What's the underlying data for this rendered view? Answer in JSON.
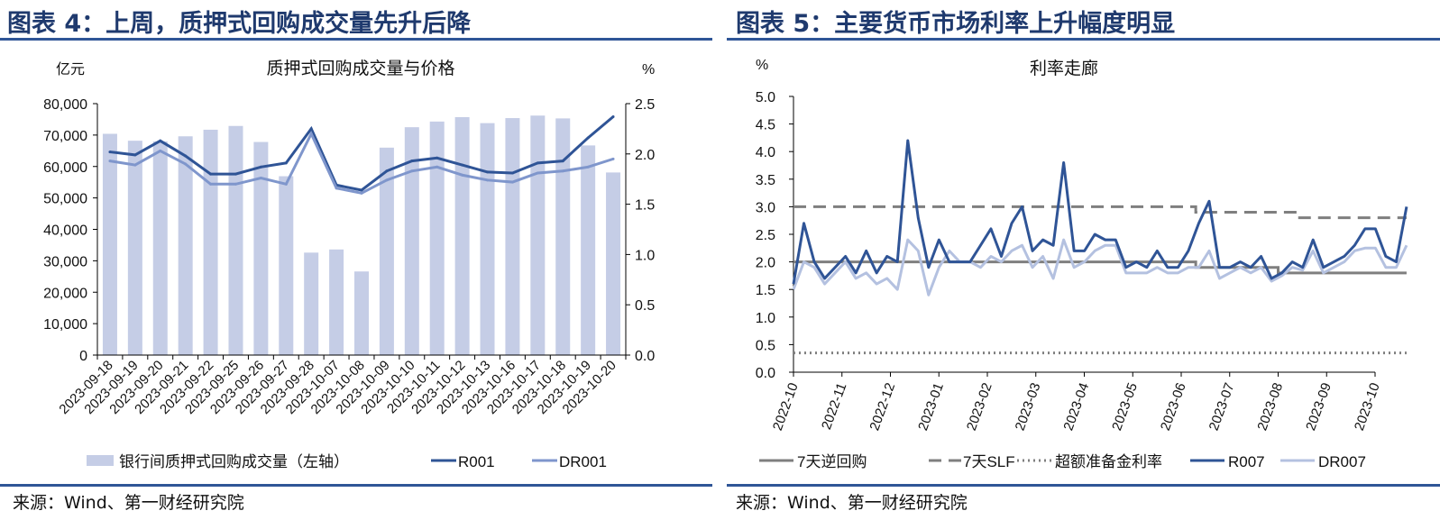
{
  "left_panel": {
    "header": "图表 4：上周，质押式回购成交量先升后降",
    "source": "来源：Wind、第一财经研究院"
  },
  "right_panel": {
    "header": "图表 5：主要货币市场利率上升幅度明显",
    "source": "来源：Wind、第一财经研究院"
  },
  "colors": {
    "header_rule": "#2f5597",
    "bar": "#c5cde6",
    "r001": "#2f5496",
    "dr001": "#7f96cc",
    "repo": "#7f7f7f",
    "r007": "#2f5496",
    "dr007": "#b4c1e0"
  },
  "chart_data": [
    {
      "type": "bar",
      "title": "质押式回购成交量与价格",
      "ylabel": "亿元",
      "y2label": "%",
      "ylim": [
        0,
        80000
      ],
      "y2lim": [
        0,
        2.5
      ],
      "yticks": [
        "0",
        "10,000",
        "20,000",
        "30,000",
        "40,000",
        "50,000",
        "60,000",
        "70,000",
        "80,000"
      ],
      "y2ticks": [
        "0.0",
        "0.5",
        "1.0",
        "1.5",
        "2.0",
        "2.5"
      ],
      "categories": [
        "2023-09-18",
        "2023-09-19",
        "2023-09-20",
        "2023-09-21",
        "2023-09-22",
        "2023-09-25",
        "2023-09-26",
        "2023-09-27",
        "2023-09-28",
        "2023-10-07",
        "2023-10-08",
        "2023-10-09",
        "2023-10-10",
        "2023-10-11",
        "2023-10-12",
        "2023-10-13",
        "2023-10-16",
        "2023-10-17",
        "2023-10-18",
        "2023-10-19",
        "2023-10-20"
      ],
      "series": [
        {
          "name": "银行间质押式回购成交量（左轴）",
          "type": "bar",
          "axis": "left",
          "values": [
            70400,
            68200,
            68000,
            69600,
            71700,
            72900,
            67800,
            56900,
            32600,
            33600,
            26600,
            66000,
            72500,
            74300,
            75700,
            73800,
            75400,
            76200,
            75300,
            66700,
            58100
          ]
        },
        {
          "name": "R001",
          "type": "line",
          "axis": "right",
          "values": [
            2.02,
            1.99,
            2.13,
            1.98,
            1.8,
            1.8,
            1.87,
            1.91,
            2.25,
            1.69,
            1.64,
            1.83,
            1.93,
            1.96,
            1.89,
            1.82,
            1.81,
            1.91,
            1.93,
            2.16,
            2.37
          ]
        },
        {
          "name": "DR001",
          "type": "line",
          "axis": "right",
          "values": [
            1.93,
            1.89,
            2.03,
            1.9,
            1.7,
            1.7,
            1.76,
            1.7,
            2.2,
            1.66,
            1.61,
            1.74,
            1.83,
            1.87,
            1.79,
            1.74,
            1.72,
            1.81,
            1.83,
            1.87,
            1.95
          ]
        }
      ],
      "legend": "bottom"
    },
    {
      "type": "line",
      "title": "利率走廊",
      "ylabel": "%",
      "ylim": [
        0,
        5
      ],
      "yticks": [
        "0.0",
        "0.5",
        "1.0",
        "1.5",
        "2.0",
        "2.5",
        "3.0",
        "3.5",
        "4.0",
        "4.5",
        "5.0"
      ],
      "xticks": [
        "2022-10",
        "2022-11",
        "2022-12",
        "2023-01",
        "2023-02",
        "2023-03",
        "2023-04",
        "2023-05",
        "2023-06",
        "2023-07",
        "2023-08",
        "2023-09",
        "2023-10"
      ],
      "x_range_months": [
        0,
        12.65
      ],
      "series": [
        {
          "name": "7天逆回购",
          "style": "solid",
          "steps": [
            [
              0,
              2.0
            ],
            [
              8.3,
              1.9
            ],
            [
              10.0,
              1.8
            ],
            [
              12.65,
              1.8
            ]
          ]
        },
        {
          "name": "7天SLF",
          "style": "dashed",
          "steps": [
            [
              0,
              3.0
            ],
            [
              8.3,
              2.9
            ],
            [
              10.4,
              2.8
            ],
            [
              12.65,
              2.8
            ]
          ]
        },
        {
          "name": "超额准备金利率",
          "style": "dotted",
          "steps": [
            [
              0,
              0.35
            ],
            [
              12.65,
              0.35
            ]
          ]
        },
        {
          "name": "R007",
          "style": "solid",
          "values": [
            1.6,
            2.7,
            2.0,
            1.7,
            1.9,
            2.1,
            1.8,
            2.2,
            1.8,
            2.1,
            2.0,
            4.2,
            2.8,
            1.9,
            2.4,
            2.0,
            2.0,
            2.0,
            2.3,
            2.6,
            2.1,
            2.7,
            3.0,
            2.2,
            2.4,
            2.3,
            3.8,
            2.2,
            2.2,
            2.5,
            2.4,
            2.4,
            1.9,
            2.0,
            1.9,
            2.2,
            1.9,
            1.9,
            2.2,
            2.7,
            3.1,
            1.9,
            1.9,
            2.0,
            1.9,
            2.1,
            1.7,
            1.8,
            2.0,
            1.9,
            2.4,
            1.9,
            2.0,
            2.1,
            2.3,
            2.6,
            2.6,
            2.1,
            2.0,
            3.0
          ]
        },
        {
          "name": "DR007",
          "style": "solid",
          "values": [
            1.5,
            2.0,
            1.9,
            1.6,
            1.8,
            2.0,
            1.7,
            1.8,
            1.6,
            1.7,
            1.5,
            2.4,
            2.2,
            1.4,
            1.9,
            2.2,
            2.0,
            2.0,
            1.9,
            2.1,
            2.0,
            2.2,
            2.3,
            1.9,
            2.1,
            1.7,
            2.4,
            1.9,
            2.0,
            2.2,
            2.3,
            2.3,
            1.8,
            1.8,
            1.8,
            1.9,
            1.8,
            1.8,
            1.9,
            1.9,
            2.2,
            1.7,
            1.8,
            1.9,
            1.8,
            1.9,
            1.65,
            1.75,
            1.9,
            1.85,
            2.2,
            1.8,
            1.9,
            2.0,
            2.2,
            2.25,
            2.25,
            1.9,
            1.9,
            2.3
          ]
        }
      ],
      "legend": "bottom"
    }
  ]
}
